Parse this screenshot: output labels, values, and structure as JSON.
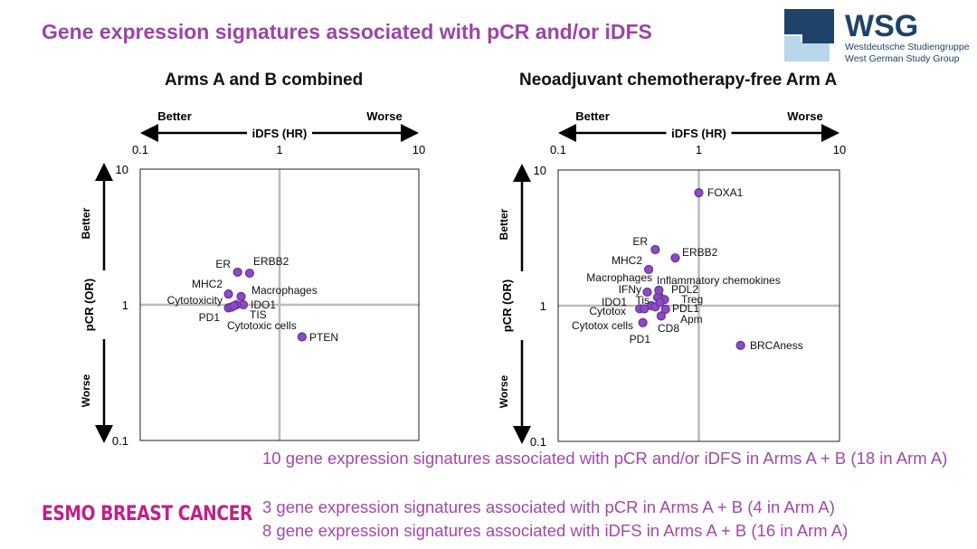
{
  "title": "Gene expression signatures associated with pCR and/or iDFS",
  "logo": {
    "name": "WSG",
    "line1": "Westdeutsche Studiengruppe",
    "line2": "West German Study Group",
    "colors": [
      "#1f4268",
      "#b9d6ea"
    ]
  },
  "footer": {
    "lines": [
      "10 gene expression signatures associated with pCR and/or iDFS in Arms A + B (18 in Arm A)",
      "3 gene expression signatures associated with pCR in Arms A + B (4 in Arm A)",
      "8 gene expression signatures associated with iDFS in Arms A + B (16 in Arm A)"
    ],
    "brand": "ESMO BREAST CANCER"
  },
  "accent": "#9b45a8",
  "point_color": "#8a4cc0",
  "chart_data": [
    {
      "type": "scatter",
      "title": "Arms A and B combined",
      "xlabel": "iDFS (HR)",
      "ylabel": "pCR (OR)",
      "x_scale": "log",
      "y_scale": "log",
      "xlim": [
        0.1,
        10
      ],
      "ylim": [
        0.1,
        10
      ],
      "xticks": [
        "0.1",
        "1",
        "10"
      ],
      "yticks": [
        "10",
        "1",
        "0.1"
      ],
      "x_better": "Better",
      "x_worse": "Worse",
      "y_better": "Better",
      "y_worse": "Worse",
      "grid": "reference lines at 1",
      "points": [
        {
          "label": "ER",
          "x": 0.5,
          "y": 1.74
        },
        {
          "label": "ERBB2",
          "x": 0.61,
          "y": 1.71
        },
        {
          "label": "MHC2",
          "x": 0.43,
          "y": 1.2
        },
        {
          "label": "Macrophages",
          "x": 0.53,
          "y": 1.15
        },
        {
          "label": "IDO1",
          "x": 0.55,
          "y": 1.0
        },
        {
          "label": "Cytotoxicity",
          "x": 0.43,
          "y": 0.95
        },
        {
          "label": "PD1",
          "x": 0.45,
          "y": 0.96
        },
        {
          "label": "TIS",
          "x": 0.49,
          "y": 1.0
        },
        {
          "label": "Cytotoxic cells",
          "x": 0.47,
          "y": 0.98
        },
        {
          "label": "PTEN",
          "x": 1.45,
          "y": 0.58
        }
      ]
    },
    {
      "type": "scatter",
      "title": "Neoadjuvant chemotherapy-free Arm A",
      "xlabel": "iDFS (HR)",
      "ylabel": "pCR (OR)",
      "x_scale": "log",
      "y_scale": "log",
      "xlim": [
        0.1,
        10
      ],
      "ylim": [
        0.1,
        10
      ],
      "xticks": [
        "0.1",
        "1",
        "10"
      ],
      "yticks": [
        "10",
        "1",
        "0.1"
      ],
      "x_better": "Better",
      "x_worse": "Worse",
      "y_better": "Better",
      "y_worse": "Worse",
      "grid": "reference lines at 1",
      "points": [
        {
          "label": "FOXA1",
          "x": 1.0,
          "y": 6.8
        },
        {
          "label": "ER",
          "x": 0.49,
          "y": 2.59
        },
        {
          "label": "ERBB2",
          "x": 0.68,
          "y": 2.25
        },
        {
          "label": "MHC2",
          "x": 0.44,
          "y": 1.85
        },
        {
          "label": "Macrophages",
          "x": 0.52,
          "y": 1.18
        },
        {
          "label": "Inflammatory chemokines",
          "x": 0.51,
          "y": 1.15
        },
        {
          "label": "IFNy",
          "x": 0.43,
          "y": 1.26
        },
        {
          "label": "PDL2",
          "x": 0.52,
          "y": 1.3
        },
        {
          "label": "Tis",
          "x": 0.46,
          "y": 1.0
        },
        {
          "label": "IDO1",
          "x": 0.49,
          "y": 0.98
        },
        {
          "label": "Treg",
          "x": 0.57,
          "y": 1.11
        },
        {
          "label": "Cytotox",
          "x": 0.38,
          "y": 0.95
        },
        {
          "label": "PDL1",
          "x": 0.58,
          "y": 0.94
        },
        {
          "label": "Apm",
          "x": 0.53,
          "y": 1.06
        },
        {
          "label": "Cytotox cells",
          "x": 0.41,
          "y": 0.95
        },
        {
          "label": "CD8",
          "x": 0.54,
          "y": 0.84
        },
        {
          "label": "PD1",
          "x": 0.4,
          "y": 0.75
        },
        {
          "label": "BRCAness",
          "x": 1.98,
          "y": 0.51
        }
      ]
    }
  ]
}
